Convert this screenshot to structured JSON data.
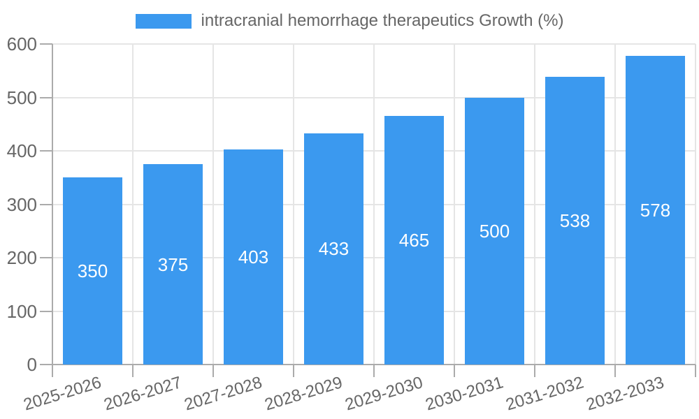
{
  "chart_data": {
    "type": "bar",
    "title": "intracranial hemorrhage therapeutics Growth (%)",
    "categories": [
      "2025-2026",
      "2026-2027",
      "2027-2028",
      "2028-2029",
      "2029-2030",
      "2030-2031",
      "2031-2032",
      "2032-2033"
    ],
    "values": [
      350,
      375,
      403,
      433,
      465,
      500,
      538,
      578
    ],
    "xlabel": "",
    "ylabel": "",
    "ylim": [
      0,
      600
    ],
    "yticks": [
      0,
      100,
      200,
      300,
      400,
      500,
      600
    ],
    "legend_position": "top",
    "grid": true,
    "value_labels": "inside-middle",
    "colors": {
      "bar": "#3b99ef",
      "value_label": "#ffffff",
      "axis_text": "#666666",
      "legend_text": "#666666",
      "gridline": "#e5e5e5",
      "axis_line": "#ababab"
    }
  }
}
